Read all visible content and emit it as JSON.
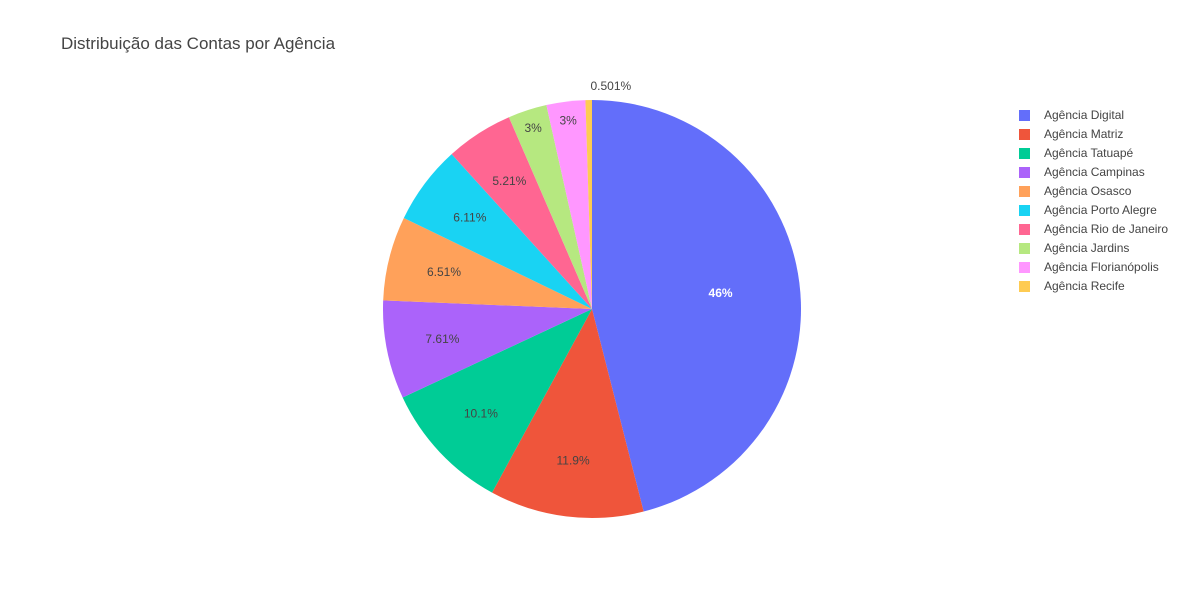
{
  "chart_data": {
    "type": "pie",
    "title": "Distribuição das Contas por Agência",
    "categories": [
      "Agência Digital",
      "Agência Matriz",
      "Agência Tatuapé",
      "Agência Campinas",
      "Agência Osasco",
      "Agência Porto Alegre",
      "Agência Rio de Janeiro",
      "Agência Jardins",
      "Agência Florianópolis",
      "Agência Recife"
    ],
    "values": [
      46,
      11.9,
      10.1,
      7.61,
      6.51,
      6.11,
      5.21,
      3,
      3,
      0.501
    ],
    "value_labels": [
      "46%",
      "11.9%",
      "10.1%",
      "7.61%",
      "6.51%",
      "6.11%",
      "5.21%",
      "3%",
      "3%",
      "0.501%"
    ],
    "colors": [
      "#636efa",
      "#EF553B",
      "#00cc96",
      "#ab63fa",
      "#FFA15A",
      "#19d3f3",
      "#FF6692",
      "#B6E880",
      "#FF97FF",
      "#FECB52"
    ],
    "legend_position": "top-right",
    "direction": "clockwise"
  }
}
